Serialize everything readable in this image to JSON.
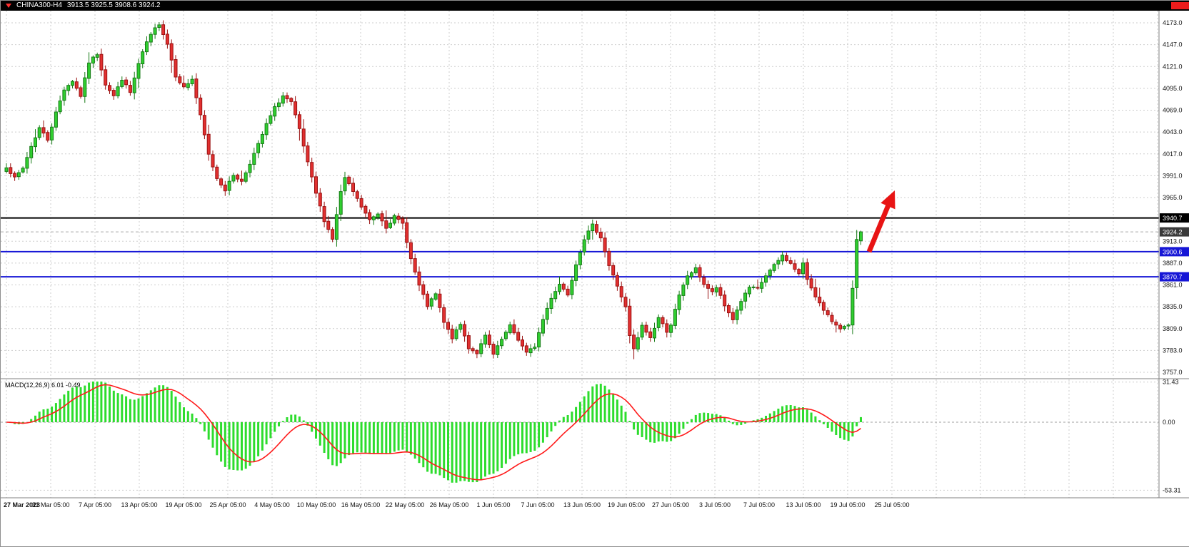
{
  "header": {
    "symbol": "CHINA300-H4",
    "ohlc_text": "3913.5 3925.5 3908.6 3924.2"
  },
  "chart_data": {
    "type": "candlestick",
    "symbol": "CHINA300",
    "timeframe": "H4",
    "current_ohlc": {
      "open": 3913.5,
      "high": 3925.5,
      "low": 3908.6,
      "close": 3924.2
    },
    "price_axis": {
      "min": 3757.0,
      "max": 4173.0,
      "tick_step": 26.0,
      "ticks": [
        4173.0,
        4147.0,
        4121.0,
        4095.0,
        4069.0,
        4043.0,
        4017.0,
        3991.0,
        3965.0,
        3913.0,
        3887.0,
        3861.0,
        3835.0,
        3809.0,
        3783.0,
        3757.0
      ]
    },
    "levels": [
      {
        "name": "resistance-black-line",
        "value": 3940.7,
        "color": "#000000",
        "width": 2
      },
      {
        "name": "support-blue-line-upper",
        "value": 3900.6,
        "color": "#1616d6",
        "width": 2
      },
      {
        "name": "support-blue-line-lower",
        "value": 3870.7,
        "color": "#1616d6",
        "width": 2
      }
    ],
    "current_price_line": {
      "value": 3924.2,
      "color": "#a8a8a8",
      "box_color": "#3a3a3a"
    },
    "time_labels": [
      "27 Mar 2023",
      "31 Mar 05:00",
      "7 Apr 05:00",
      "13 Apr 05:00",
      "19 Apr 05:00",
      "25 Apr 05:00",
      "4 May 05:00",
      "10 May 05:00",
      "16 May 05:00",
      "22 May 05:00",
      "26 May 05:00",
      "1 Jun 05:00",
      "7 Jun 05:00",
      "13 Jun 05:00",
      "19 Jun 05:00",
      "27 Jun 05:00",
      "3 Jul 05:00",
      "7 Jul 05:00",
      "13 Jul 05:00",
      "19 Jul 05:00",
      "25 Jul 05:00"
    ],
    "candle_count": 208,
    "close_waypoints": [
      [
        0,
        4002
      ],
      [
        2,
        3988
      ],
      [
        4,
        4000
      ],
      [
        6,
        4026
      ],
      [
        8,
        4048
      ],
      [
        10,
        4034
      ],
      [
        12,
        4066
      ],
      [
        14,
        4094
      ],
      [
        16,
        4104
      ],
      [
        18,
        4086
      ],
      [
        20,
        4126
      ],
      [
        22,
        4136
      ],
      [
        24,
        4100
      ],
      [
        26,
        4086
      ],
      [
        28,
        4106
      ],
      [
        30,
        4090
      ],
      [
        32,
        4124
      ],
      [
        34,
        4150
      ],
      [
        36,
        4166
      ],
      [
        37,
        4172
      ],
      [
        39,
        4148
      ],
      [
        41,
        4110
      ],
      [
        43,
        4096
      ],
      [
        45,
        4106
      ],
      [
        47,
        4062
      ],
      [
        49,
        4016
      ],
      [
        51,
        3988
      ],
      [
        53,
        3974
      ],
      [
        55,
        3992
      ],
      [
        57,
        3984
      ],
      [
        59,
        4006
      ],
      [
        61,
        4028
      ],
      [
        63,
        4052
      ],
      [
        65,
        4072
      ],
      [
        67,
        4086
      ],
      [
        69,
        4078
      ],
      [
        71,
        4046
      ],
      [
        73,
        4006
      ],
      [
        75,
        3970
      ],
      [
        77,
        3938
      ],
      [
        79,
        3916
      ],
      [
        81,
        3972
      ],
      [
        82,
        3988
      ],
      [
        84,
        3972
      ],
      [
        86,
        3954
      ],
      [
        88,
        3938
      ],
      [
        90,
        3946
      ],
      [
        92,
        3930
      ],
      [
        94,
        3942
      ],
      [
        96,
        3934
      ],
      [
        98,
        3892
      ],
      [
        100,
        3860
      ],
      [
        102,
        3836
      ],
      [
        104,
        3850
      ],
      [
        106,
        3816
      ],
      [
        108,
        3798
      ],
      [
        110,
        3814
      ],
      [
        112,
        3786
      ],
      [
        114,
        3780
      ],
      [
        116,
        3800
      ],
      [
        118,
        3778
      ],
      [
        120,
        3796
      ],
      [
        122,
        3812
      ],
      [
        124,
        3796
      ],
      [
        126,
        3780
      ],
      [
        128,
        3788
      ],
      [
        130,
        3820
      ],
      [
        132,
        3846
      ],
      [
        134,
        3862
      ],
      [
        136,
        3850
      ],
      [
        138,
        3886
      ],
      [
        140,
        3916
      ],
      [
        142,
        3932
      ],
      [
        144,
        3918
      ],
      [
        146,
        3884
      ],
      [
        148,
        3860
      ],
      [
        150,
        3834
      ],
      [
        151,
        3800
      ],
      [
        152,
        3784
      ],
      [
        154,
        3812
      ],
      [
        156,
        3798
      ],
      [
        158,
        3822
      ],
      [
        160,
        3806
      ],
      [
        161,
        3814
      ],
      [
        163,
        3848
      ],
      [
        165,
        3872
      ],
      [
        167,
        3880
      ],
      [
        169,
        3862
      ],
      [
        171,
        3852
      ],
      [
        172,
        3858
      ],
      [
        174,
        3836
      ],
      [
        176,
        3820
      ],
      [
        178,
        3842
      ],
      [
        180,
        3858
      ],
      [
        182,
        3856
      ],
      [
        184,
        3872
      ],
      [
        186,
        3884
      ],
      [
        188,
        3896
      ],
      [
        190,
        3886
      ],
      [
        192,
        3874
      ],
      [
        193,
        3886
      ],
      [
        194,
        3868
      ],
      [
        196,
        3848
      ],
      [
        198,
        3830
      ],
      [
        200,
        3818
      ],
      [
        202,
        3810
      ],
      [
        204,
        3812
      ],
      [
        205,
        3856
      ],
      [
        206,
        3914
      ],
      [
        207,
        3924.2
      ]
    ],
    "macd": {
      "label": "MACD(12,26,9) 6.01 -0.49",
      "params": [
        12,
        26,
        9
      ],
      "value": 6.01,
      "signal": -0.49,
      "axis": [
        31.43,
        0.0,
        -53.31
      ]
    },
    "annotation": {
      "type": "arrow-up",
      "color": "#e81414",
      "note": "red bullish arrow above last candles pointing toward 3940.7 resistance"
    },
    "colors": {
      "bull": "#30cf30",
      "bull_border": "#157a15",
      "bear": "#e23030",
      "bear_border": "#991111",
      "macd_histogram": "#2ddc2d",
      "macd_signal": "#ff1a1a",
      "grid": "#cdcdcd",
      "arrow": "#e81414",
      "background": "#ffffff",
      "header_bg": "#000000"
    }
  }
}
